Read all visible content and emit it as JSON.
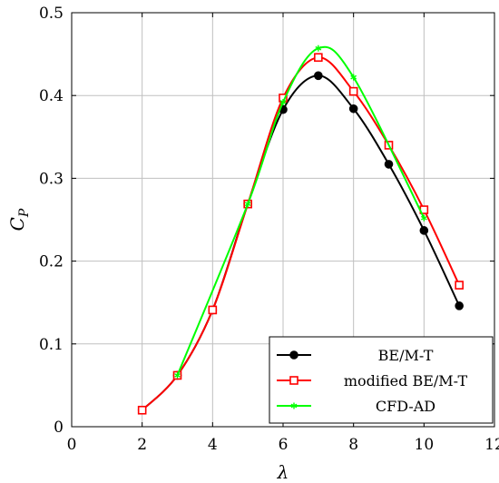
{
  "chart_data": {
    "type": "line",
    "xlabel": "λ",
    "ylabel": "C",
    "ylabel_subscript": "P",
    "xlim": [
      0,
      12
    ],
    "ylim": [
      0,
      0.5
    ],
    "xticks": [
      0,
      2,
      4,
      6,
      8,
      10,
      12
    ],
    "yticks": [
      0,
      0.1,
      0.2,
      0.3,
      0.4,
      0.5
    ],
    "xtick_labels": [
      "0",
      "2",
      "4",
      "6",
      "8",
      "10",
      "12"
    ],
    "ytick_labels": [
      "0",
      "0.1",
      "0.2",
      "0.3",
      "0.4",
      "0.5"
    ],
    "grid": true,
    "legend_position": "bottom-right",
    "series": [
      {
        "name": "BE/M-T",
        "color": "#000000",
        "marker": "filled-circle",
        "x": [
          2,
          3,
          4,
          5,
          6,
          7,
          8,
          9,
          10,
          11
        ],
        "y": [
          0.02,
          0.062,
          0.141,
          0.269,
          0.383,
          0.424,
          0.384,
          0.317,
          0.237,
          0.146
        ]
      },
      {
        "name": "modified BE/M-T",
        "color": "#ff0000",
        "marker": "open-square",
        "x": [
          2,
          3,
          4,
          5,
          6,
          7,
          8,
          9,
          10,
          11
        ],
        "y": [
          0.02,
          0.062,
          0.141,
          0.269,
          0.397,
          0.446,
          0.405,
          0.34,
          0.262,
          0.171
        ]
      },
      {
        "name": "CFD-AD",
        "color": "#00ff00",
        "marker": "star",
        "x": [
          3,
          5,
          6,
          7,
          8,
          10
        ],
        "y": [
          0.062,
          0.269,
          0.392,
          0.457,
          0.422,
          0.252
        ]
      }
    ]
  }
}
